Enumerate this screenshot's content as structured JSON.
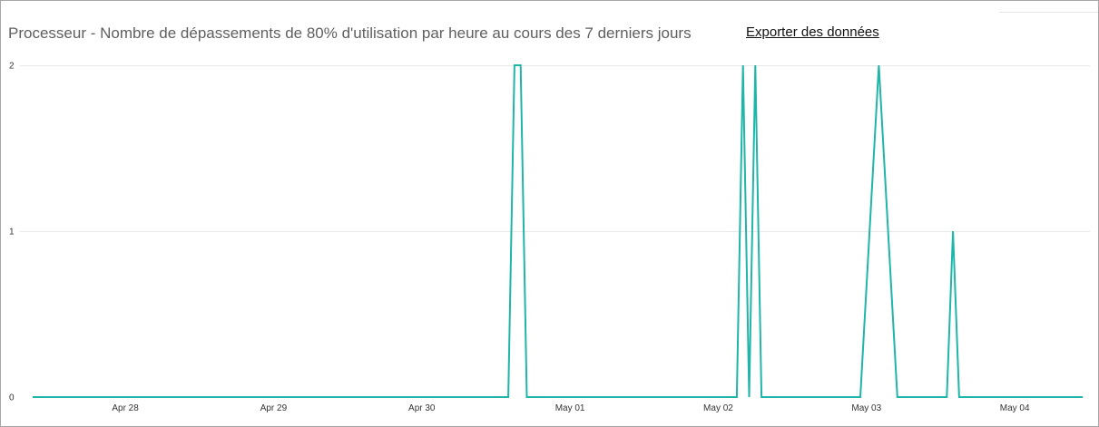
{
  "header": {
    "title": "Processeur - Nombre de dépassements de 80% d'utilisation par heure au cours des 7 derniers jours",
    "export_label": "Exporter des données"
  },
  "chart_data": {
    "type": "line",
    "title": "Processeur - Nombre de dépassements de 80% d'utilisation par heure au cours des 7 derniers jours",
    "xlabel": "",
    "ylabel": "",
    "x_start": "2023-04-27T09:00",
    "x_end": "2023-05-04T11:00",
    "ylim": [
      0,
      2
    ],
    "y_ticks": [
      0,
      1,
      2
    ],
    "x_ticks": [
      {
        "label": "Apr 28",
        "at": "2023-04-28T00:00"
      },
      {
        "label": "Apr 29",
        "at": "2023-04-29T00:00"
      },
      {
        "label": "Apr 30",
        "at": "2023-04-30T00:00"
      },
      {
        "label": "May 01",
        "at": "2023-05-01T00:00"
      },
      {
        "label": "May 02",
        "at": "2023-05-02T00:00"
      },
      {
        "label": "May 03",
        "at": "2023-05-03T00:00"
      },
      {
        "label": "May 04",
        "at": "2023-05-04T00:00"
      }
    ],
    "grid": true,
    "series": [
      {
        "color": "#1fb5a8",
        "points": [
          {
            "x": "2023-04-27T09:00",
            "y": 0
          },
          {
            "x": "2023-04-30T14:00",
            "y": 0
          },
          {
            "x": "2023-04-30T15:00",
            "y": 2
          },
          {
            "x": "2023-04-30T16:00",
            "y": 2
          },
          {
            "x": "2023-04-30T17:00",
            "y": 0
          },
          {
            "x": "2023-05-02T03:00",
            "y": 0
          },
          {
            "x": "2023-05-02T04:00",
            "y": 2
          },
          {
            "x": "2023-05-02T05:00",
            "y": 0
          },
          {
            "x": "2023-05-02T06:00",
            "y": 2
          },
          {
            "x": "2023-05-02T07:00",
            "y": 0
          },
          {
            "x": "2023-05-02T23:00",
            "y": 0
          },
          {
            "x": "2023-05-03T02:00",
            "y": 2
          },
          {
            "x": "2023-05-03T05:00",
            "y": 0
          },
          {
            "x": "2023-05-03T13:00",
            "y": 0
          },
          {
            "x": "2023-05-03T14:00",
            "y": 1
          },
          {
            "x": "2023-05-03T15:00",
            "y": 0
          },
          {
            "x": "2023-05-04T11:00",
            "y": 0
          }
        ]
      }
    ]
  }
}
